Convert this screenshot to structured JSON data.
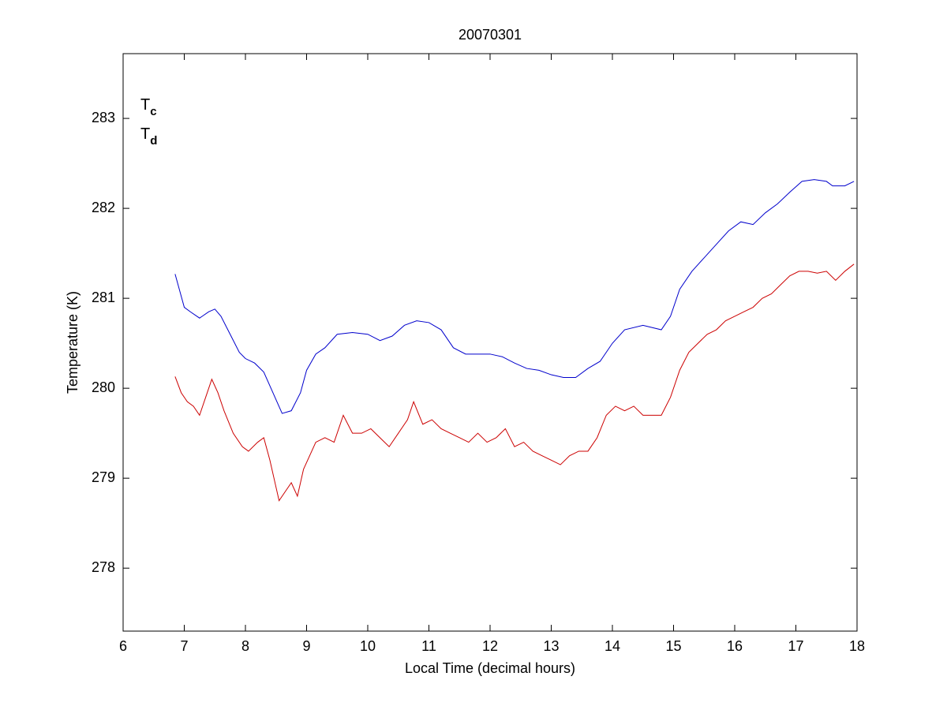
{
  "chart_data": {
    "type": "line",
    "title": "20070301",
    "xlabel": "Local Time (decimal hours)",
    "ylabel": "Temperature (K)",
    "xlim": [
      6,
      18
    ],
    "xticks": [
      6,
      7,
      8,
      9,
      10,
      11,
      12,
      13,
      14,
      15,
      16,
      17,
      18
    ],
    "ylim": [
      277.3,
      283.72
    ],
    "yticks": [
      278,
      279,
      280,
      281,
      282,
      283
    ],
    "legend": "upper left",
    "grid": false,
    "series": [
      {
        "name": "Tc",
        "color": "#0000cc",
        "x": [
          6.85,
          7.0,
          7.1,
          7.25,
          7.4,
          7.5,
          7.6,
          7.75,
          7.9,
          8.0,
          8.15,
          8.3,
          8.45,
          8.6,
          8.75,
          8.9,
          9.0,
          9.15,
          9.3,
          9.5,
          9.75,
          10.0,
          10.2,
          10.4,
          10.6,
          10.8,
          11.0,
          11.2,
          11.4,
          11.6,
          11.8,
          12.0,
          12.2,
          12.4,
          12.6,
          12.8,
          13.0,
          13.2,
          13.4,
          13.6,
          13.8,
          14.0,
          14.2,
          14.5,
          14.8,
          14.95,
          15.1,
          15.3,
          15.5,
          15.7,
          15.9,
          16.1,
          16.3,
          16.5,
          16.7,
          16.9,
          17.1,
          17.3,
          17.5,
          17.6,
          17.8,
          17.95
        ],
        "values": [
          281.27,
          280.9,
          280.85,
          280.78,
          280.85,
          280.88,
          280.8,
          280.6,
          280.4,
          280.33,
          280.28,
          280.18,
          279.95,
          279.72,
          279.75,
          279.95,
          280.2,
          280.38,
          280.45,
          280.6,
          280.62,
          280.6,
          280.53,
          280.58,
          280.7,
          280.75,
          280.73,
          280.65,
          280.45,
          280.38,
          280.38,
          280.38,
          280.35,
          280.28,
          280.22,
          280.2,
          280.15,
          280.12,
          280.12,
          280.22,
          280.3,
          280.5,
          280.65,
          280.7,
          280.65,
          280.8,
          281.1,
          281.3,
          281.45,
          281.6,
          281.75,
          281.85,
          281.82,
          281.95,
          282.05,
          282.18,
          282.3,
          282.32,
          282.3,
          282.25,
          282.25,
          282.3
        ]
      },
      {
        "name": "Td",
        "color": "#cc0000",
        "x": [
          6.85,
          6.95,
          7.05,
          7.15,
          7.25,
          7.35,
          7.45,
          7.55,
          7.65,
          7.8,
          7.95,
          8.05,
          8.2,
          8.3,
          8.4,
          8.5,
          8.55,
          8.65,
          8.75,
          8.85,
          8.95,
          9.05,
          9.15,
          9.3,
          9.45,
          9.6,
          9.75,
          9.9,
          10.05,
          10.2,
          10.35,
          10.5,
          10.65,
          10.75,
          10.9,
          11.05,
          11.2,
          11.35,
          11.5,
          11.65,
          11.8,
          11.95,
          12.1,
          12.25,
          12.4,
          12.55,
          12.7,
          12.85,
          13.0,
          13.15,
          13.3,
          13.45,
          13.6,
          13.75,
          13.9,
          14.05,
          14.2,
          14.35,
          14.5,
          14.65,
          14.8,
          14.95,
          15.1,
          15.25,
          15.4,
          15.55,
          15.7,
          15.85,
          16.0,
          16.15,
          16.3,
          16.45,
          16.6,
          16.75,
          16.9,
          17.05,
          17.2,
          17.35,
          17.5,
          17.65,
          17.8,
          17.95
        ],
        "values": [
          280.13,
          279.95,
          279.85,
          279.8,
          279.7,
          279.9,
          280.1,
          279.95,
          279.75,
          279.5,
          279.35,
          279.3,
          279.4,
          279.45,
          279.2,
          278.9,
          278.75,
          278.85,
          278.95,
          278.8,
          279.1,
          279.25,
          279.4,
          279.45,
          279.4,
          279.7,
          279.5,
          279.5,
          279.55,
          279.45,
          279.35,
          279.5,
          279.65,
          279.85,
          279.6,
          279.65,
          279.55,
          279.5,
          279.45,
          279.4,
          279.5,
          279.4,
          279.45,
          279.55,
          279.35,
          279.4,
          279.3,
          279.25,
          279.2,
          279.15,
          279.25,
          279.3,
          279.3,
          279.45,
          279.7,
          279.8,
          279.75,
          279.8,
          279.7,
          279.7,
          279.7,
          279.9,
          280.2,
          280.4,
          280.5,
          280.6,
          280.65,
          280.75,
          280.8,
          280.85,
          280.9,
          281.0,
          281.05,
          281.15,
          281.25,
          281.3,
          281.3,
          281.28,
          281.3,
          281.2,
          281.3,
          281.38
        ]
      }
    ]
  }
}
